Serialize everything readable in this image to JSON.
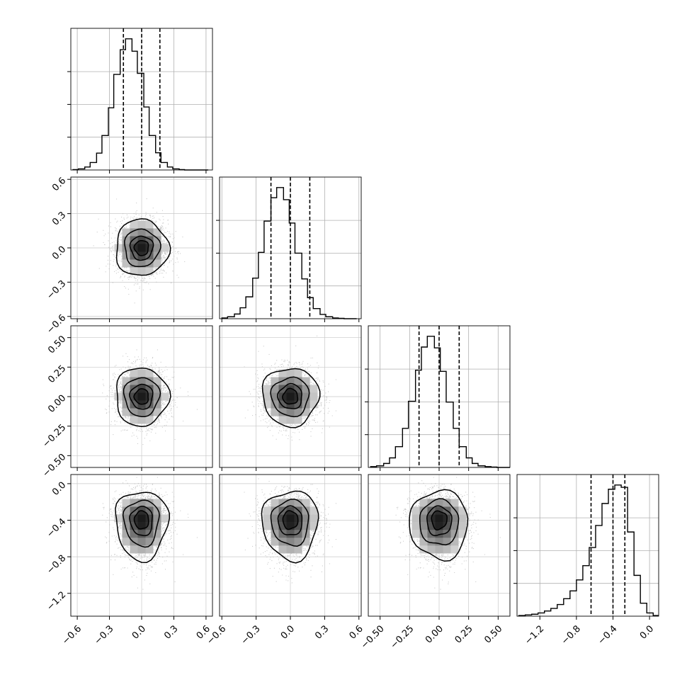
{
  "chart_data": {
    "type": "corner",
    "grid": true,
    "parameters": 4,
    "variables": [
      {
        "range": [
          -0.66,
          0.66
        ],
        "mean": 0.0,
        "sd": 0.12,
        "quantiles": [
          -0.17,
          0.0,
          0.17
        ],
        "ticks": [
          -0.6,
          -0.3,
          0.0,
          0.3,
          0.6
        ],
        "tick_labels": [
          "−0.6",
          "−0.3",
          "0.0",
          "0.3",
          "0.6"
        ],
        "skew": 0
      },
      {
        "range": [
          -0.62,
          0.62
        ],
        "mean": 0.0,
        "sd": 0.12,
        "quantiles": [
          -0.17,
          0.0,
          0.17
        ],
        "ticks": [
          -0.6,
          -0.3,
          0.0,
          0.3,
          0.6
        ],
        "tick_labels": [
          "−0.6",
          "−0.3",
          "0.0",
          "0.3",
          "0.6"
        ],
        "skew": 0
      },
      {
        "range": [
          -0.6,
          0.6
        ],
        "mean": 0.0,
        "sd": 0.12,
        "quantiles": [
          -0.17,
          0.0,
          0.17
        ],
        "ticks": [
          -0.5,
          -0.25,
          0.0,
          0.25,
          0.5
        ],
        "tick_labels": [
          "−0.50",
          "−0.25",
          "0.00",
          "0.25",
          "0.50"
        ],
        "skew": 0
      },
      {
        "range": [
          -1.45,
          0.1
        ],
        "mean": -0.38,
        "sd": 0.17,
        "quantiles": [
          -0.64,
          -0.4,
          -0.27
        ],
        "ticks": [
          -1.2,
          -0.8,
          -0.4,
          0.0
        ],
        "tick_labels": [
          "−1.2",
          "−0.8",
          "−0.4",
          "0.0"
        ],
        "skew": 1
      }
    ],
    "histograms": [
      {
        "bins": [
          -0.64,
          -0.59,
          -0.53,
          -0.48,
          -0.42,
          -0.37,
          -0.31,
          -0.26,
          -0.2,
          -0.15,
          -0.09,
          -0.04,
          0.02,
          0.07,
          0.13,
          0.18,
          0.24,
          0.29,
          0.35,
          0.4,
          0.46,
          0.51,
          0.57,
          0.62
        ],
        "counts": [
          1,
          3,
          8,
          20,
          45,
          92,
          166,
          255,
          321,
          350,
          317,
          258,
          168,
          92,
          46,
          20,
          8,
          3,
          1,
          0,
          0,
          0,
          0
        ]
      },
      {
        "bins": [
          -0.6,
          -0.55,
          -0.49,
          -0.44,
          -0.39,
          -0.33,
          -0.28,
          -0.23,
          -0.17,
          -0.12,
          -0.06,
          -0.01,
          0.04,
          0.1,
          0.15,
          0.2,
          0.26,
          0.31,
          0.37,
          0.42,
          0.47,
          0.53,
          0.58
        ],
        "counts": [
          2,
          5,
          12,
          28,
          56,
          104,
          170,
          250,
          310,
          336,
          305,
          245,
          168,
          102,
          54,
          26,
          11,
          5,
          2,
          1,
          0,
          0
        ]
      },
      {
        "bins": [
          -0.58,
          -0.53,
          -0.47,
          -0.42,
          -0.37,
          -0.31,
          -0.26,
          -0.2,
          -0.15,
          -0.1,
          -0.04,
          0.01,
          0.06,
          0.12,
          0.17,
          0.23,
          0.28,
          0.33,
          0.39,
          0.44,
          0.49,
          0.55,
          0.6
        ],
        "counts": [
          2,
          4,
          10,
          24,
          52,
          98,
          166,
          244,
          302,
          329,
          300,
          241,
          164,
          98,
          52,
          24,
          10,
          4,
          2,
          1,
          0,
          0
        ]
      },
      {
        "bins": [
          -1.43,
          -1.36,
          -1.29,
          -1.22,
          -1.15,
          -1.08,
          -1.01,
          -0.94,
          -0.87,
          -0.8,
          -0.73,
          -0.66,
          -0.59,
          -0.52,
          -0.45,
          -0.38,
          -0.31,
          -0.24,
          -0.17,
          -0.1,
          -0.03,
          0.04,
          0.1
        ],
        "counts": [
          2,
          4,
          6,
          10,
          16,
          24,
          36,
          54,
          78,
          112,
          156,
          212,
          280,
          348,
          392,
          405,
          398,
          260,
          126,
          40,
          10,
          2
        ]
      }
    ],
    "contour_levels": [
      0.12,
      0.39,
      0.68,
      0.86
    ],
    "correlations": [
      [
        1,
        0,
        0,
        0
      ],
      [
        0,
        1,
        0,
        0
      ],
      [
        0,
        0,
        1,
        0
      ],
      [
        0,
        0,
        0,
        1
      ]
    ]
  }
}
